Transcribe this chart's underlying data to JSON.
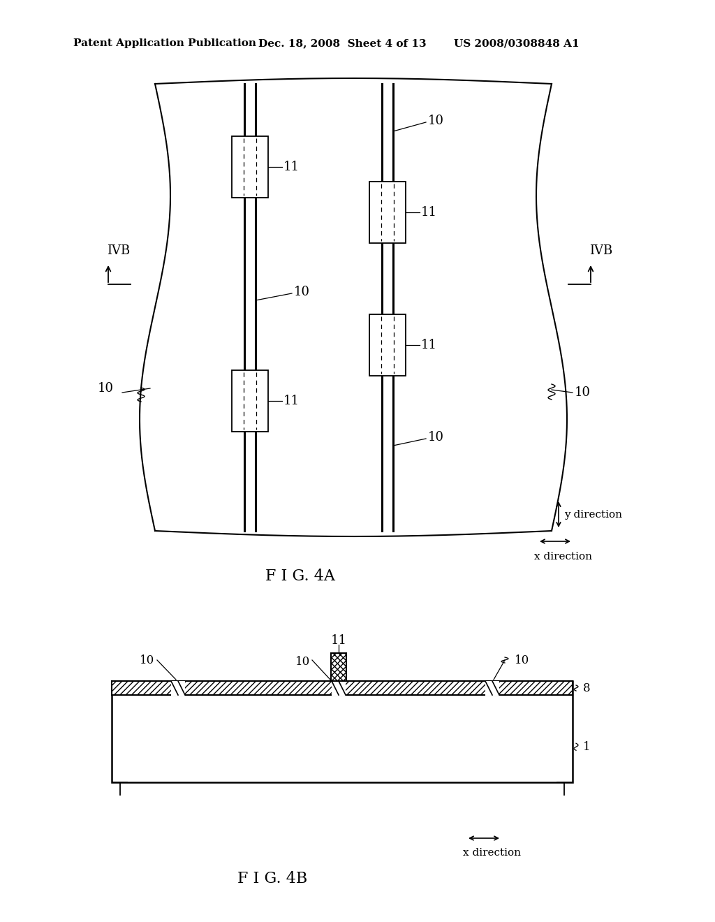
{
  "bg_color": "#ffffff",
  "line_color": "#000000",
  "header_left": "Patent Application Publication",
  "header_mid": "Dec. 18, 2008  Sheet 4 of 13",
  "header_right": "US 2008/0308848 A1",
  "fig4a_label": "F I G. 4A",
  "fig4b_label": "F I G. 4B",
  "label_fontsize": 13,
  "header_fontsize": 11
}
